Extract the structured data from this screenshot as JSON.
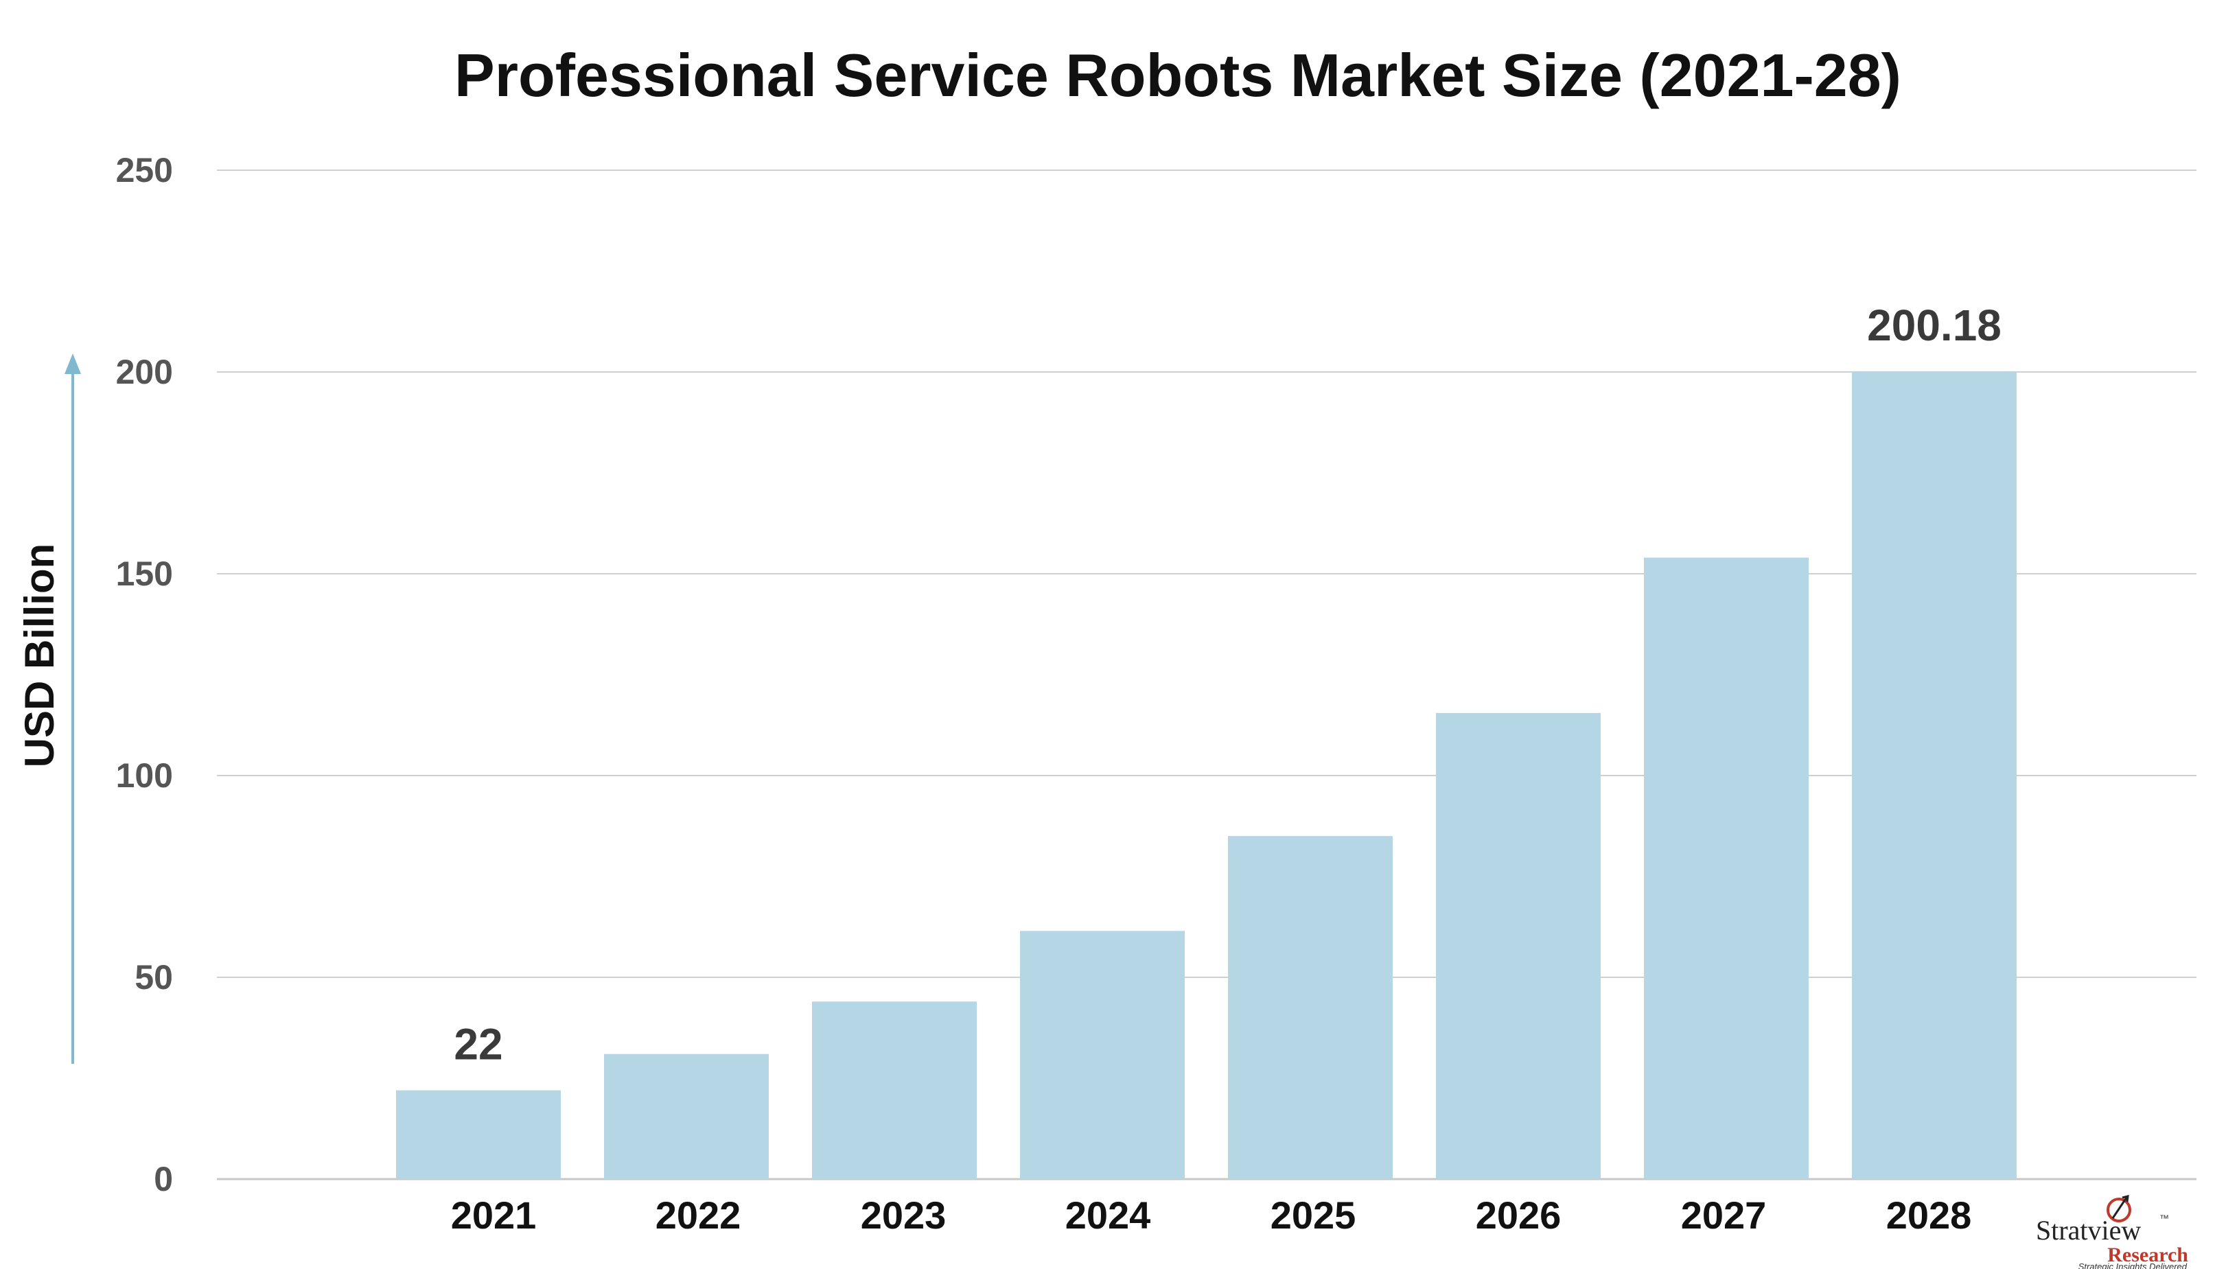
{
  "chart_data": {
    "type": "bar",
    "title": "Professional Service Robots Market Size (2021-28)",
    "xlabel": "",
    "ylabel": "USD Billion",
    "categories": [
      "2021",
      "2022",
      "2023",
      "2024",
      "2025",
      "2026",
      "2027",
      "2028"
    ],
    "values": [
      22,
      31,
      44,
      61.5,
      85,
      115.5,
      154,
      200.18
    ],
    "data_labels": {
      "0": "22",
      "7": "200.18"
    },
    "ylim": [
      0,
      250
    ],
    "yticks": [
      "0",
      "50",
      "100",
      "150",
      "200",
      "250"
    ],
    "grid": true,
    "bar_color": "#b5d6e5",
    "axis_arrow_color": "#7fb8cf"
  },
  "logo": {
    "name": "Stratview",
    "sub": "Research",
    "tagline": "Strategic Insights Delivered",
    "tm": "™"
  }
}
